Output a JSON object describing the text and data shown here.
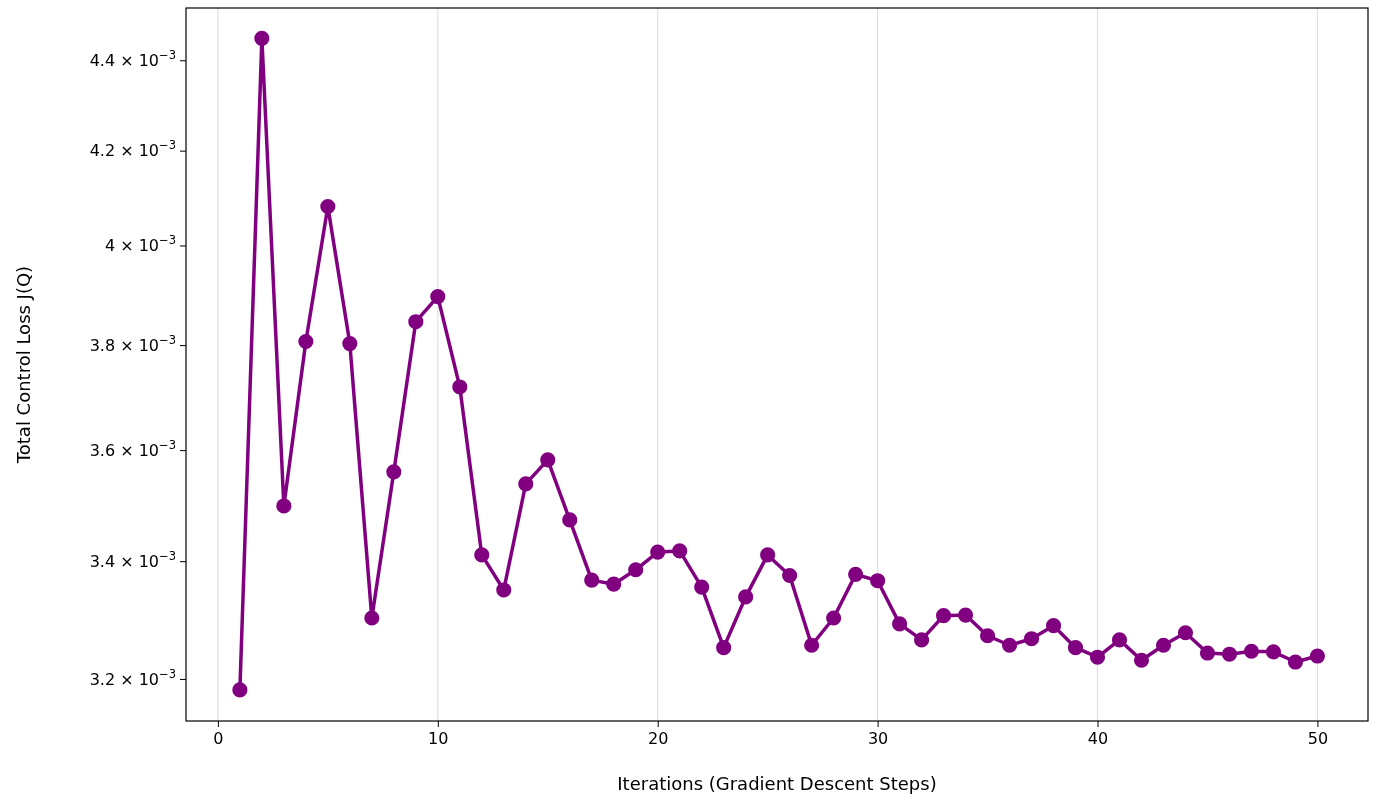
{
  "chart_data": {
    "type": "line",
    "xlabel": "Iterations (Gradient Descent Steps)",
    "ylabel": "Total Control Loss J(Q)",
    "x": [
      1,
      2,
      3,
      4,
      5,
      6,
      7,
      8,
      9,
      10,
      11,
      12,
      13,
      14,
      15,
      16,
      17,
      18,
      19,
      20,
      21,
      22,
      23,
      24,
      25,
      26,
      27,
      28,
      29,
      30,
      31,
      32,
      33,
      34,
      35,
      36,
      37,
      38,
      39,
      40,
      41,
      42,
      43,
      44,
      45,
      46,
      47,
      48,
      49,
      50
    ],
    "series": [
      {
        "color": "#800080",
        "values": [
          0.003182,
          0.00445,
          0.003498,
          0.003807,
          0.004081,
          0.003803,
          0.003302,
          0.00356,
          0.003846,
          0.003896,
          0.003719,
          0.003411,
          0.00335,
          0.003538,
          0.003582,
          0.003473,
          0.003367,
          0.00336,
          0.003385,
          0.003416,
          0.003418,
          0.003355,
          0.003252,
          0.003338,
          0.003411,
          0.003375,
          0.003256,
          0.003302,
          0.003377,
          0.003366,
          0.003292,
          0.003265,
          0.003306,
          0.003307,
          0.003272,
          0.003256,
          0.003267,
          0.003289,
          0.003252,
          0.003236,
          0.003265,
          0.003231,
          0.003256,
          0.003277,
          0.003243,
          0.003241,
          0.003246,
          0.003245,
          0.003228,
          0.003238
        ]
      }
    ],
    "xlim": [
      -1.45,
      52.3
    ],
    "xticks": [
      0,
      10,
      20,
      30,
      40,
      50
    ],
    "ylim": [
      0.0031315,
      0.00452
    ],
    "yticks": [
      {
        "value": 0.0032,
        "label": "3.2 × 10$^{−3}$"
      },
      {
        "value": 0.0034,
        "label": "3.4 × 10$^{−3}$"
      },
      {
        "value": 0.0036,
        "label": "3.6 × 10$^{−3}$"
      },
      {
        "value": 0.0038,
        "label": "3.8 × 10$^{−3}$"
      },
      {
        "value": 0.004,
        "label": "4 × 10$^{−3}$"
      },
      {
        "value": 0.0042,
        "label": "4.2 × 10$^{−3}$"
      },
      {
        "value": 0.0044,
        "label": "4.4 × 10$^{−3}$"
      }
    ],
    "log": true,
    "grid": "x",
    "marker": "circle",
    "line_style": "solid"
  }
}
